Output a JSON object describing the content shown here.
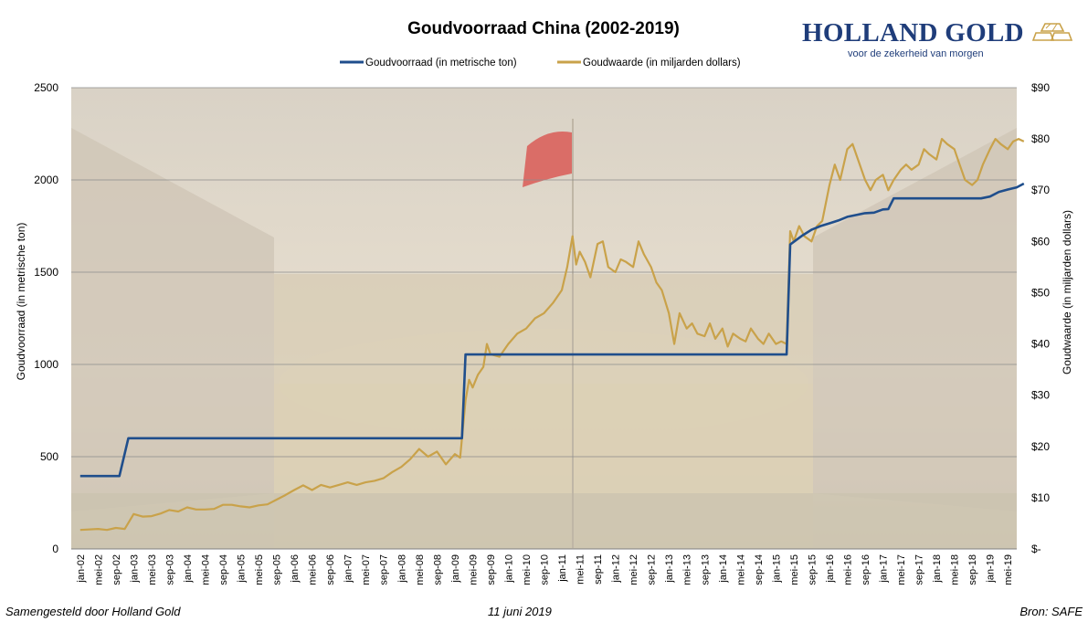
{
  "footer": {
    "left": "Samengesteld door Holland Gold",
    "center": "11 juni 2019",
    "right": "Bron: SAFE"
  },
  "logo": {
    "name": "HOLLAND GOLD",
    "tagline": "voor de zekerheid van morgen",
    "accent": "#c9a24a",
    "brand_color": "#1f3d7a"
  },
  "chart_data": {
    "type": "line",
    "title": "Goudvoorraad China (2002-2019)",
    "xlabel": "",
    "ylabel": "Goudvoorraad (in metrische ton)",
    "ylabel_right": "Goudwaarde (in miljarden dollars)",
    "ylim": [
      0,
      2500
    ],
    "ylim_right": [
      0,
      90
    ],
    "yticks": [
      "0",
      "500",
      "1000",
      "1500",
      "2000",
      "2500"
    ],
    "yticks_right": [
      "$-",
      "$10",
      "$20",
      "$30",
      "$40",
      "$50",
      "$60",
      "$70",
      "$80",
      "$90"
    ],
    "grid": "horizontal",
    "legend": "top-center",
    "categories": [
      "jan-02",
      "mei-02",
      "sep-02",
      "jan-03",
      "mei-03",
      "sep-03",
      "jan-04",
      "mei-04",
      "sep-04",
      "jan-05",
      "mei-05",
      "sep-05",
      "jan-06",
      "mei-06",
      "sep-06",
      "jan-07",
      "mei-07",
      "sep-07",
      "jan-08",
      "mei-08",
      "sep-08",
      "jan-09",
      "mei-09",
      "sep-09",
      "jan-10",
      "mei-10",
      "sep-10",
      "jan-11",
      "mei-11",
      "sep-11",
      "jan-12",
      "mei-12",
      "sep-12",
      "jan-13",
      "mei-13",
      "sep-13",
      "jan-14",
      "mei-14",
      "sep-14",
      "jan-15",
      "mei-15",
      "sep-15",
      "jan-16",
      "mei-16",
      "sep-16",
      "jan-17",
      "mei-17",
      "sep-17",
      "jan-18",
      "mei-18",
      "sep-18",
      "jan-19",
      "mei-19"
    ],
    "series": [
      {
        "name": "Goudvoorraad (in metrische ton)",
        "axis": "left",
        "color": "#1f4e8c",
        "points": [
          [
            0,
            395
          ],
          [
            2.2,
            395
          ],
          [
            2.7,
            600
          ],
          [
            21.4,
            600
          ],
          [
            21.6,
            1054
          ],
          [
            39.6,
            1054
          ],
          [
            39.8,
            1650
          ],
          [
            40.5,
            1700
          ],
          [
            41,
            1730
          ],
          [
            41.5,
            1750
          ],
          [
            42,
            1765
          ],
          [
            42.5,
            1780
          ],
          [
            43,
            1800
          ],
          [
            43.5,
            1810
          ],
          [
            44,
            1820
          ],
          [
            44.5,
            1823
          ],
          [
            45,
            1840
          ],
          [
            45.3,
            1842
          ],
          [
            45.6,
            1900
          ],
          [
            47,
            1900
          ],
          [
            48,
            1900
          ],
          [
            49,
            1900
          ],
          [
            50,
            1900
          ],
          [
            50.5,
            1900
          ],
          [
            51,
            1910
          ],
          [
            51.5,
            1935
          ],
          [
            52,
            1948
          ],
          [
            52.5,
            1960
          ],
          [
            52.9,
            1980
          ]
        ]
      },
      {
        "name": "Goudwaarde (in miljarden dollars)",
        "axis": "right",
        "color": "#c9a24a",
        "points": [
          [
            0,
            3.7
          ],
          [
            1,
            3.9
          ],
          [
            1.5,
            3.7
          ],
          [
            2,
            4.1
          ],
          [
            2.5,
            3.9
          ],
          [
            3,
            6.8
          ],
          [
            3.5,
            6.3
          ],
          [
            4,
            6.4
          ],
          [
            4.5,
            6.9
          ],
          [
            5,
            7.6
          ],
          [
            5.5,
            7.3
          ],
          [
            6,
            8.1
          ],
          [
            6.5,
            7.7
          ],
          [
            7,
            7.7
          ],
          [
            7.5,
            7.8
          ],
          [
            8,
            8.6
          ],
          [
            8.5,
            8.6
          ],
          [
            9,
            8.3
          ],
          [
            9.5,
            8.1
          ],
          [
            10,
            8.5
          ],
          [
            10.5,
            8.7
          ],
          [
            11,
            9.6
          ],
          [
            11.5,
            10.5
          ],
          [
            12,
            11.5
          ],
          [
            12.5,
            12.4
          ],
          [
            13,
            11.5
          ],
          [
            13.5,
            12.5
          ],
          [
            14,
            12.0
          ],
          [
            14.5,
            12.5
          ],
          [
            15,
            13.0
          ],
          [
            15.5,
            12.5
          ],
          [
            16,
            13.0
          ],
          [
            16.5,
            13.3
          ],
          [
            17,
            13.8
          ],
          [
            17.5,
            15.0
          ],
          [
            18,
            16.0
          ],
          [
            18.5,
            17.5
          ],
          [
            19,
            19.5
          ],
          [
            19.5,
            18.0
          ],
          [
            20,
            19.0
          ],
          [
            20.5,
            16.5
          ],
          [
            21,
            18.5
          ],
          [
            21.3,
            17.8
          ],
          [
            21.6,
            29.0
          ],
          [
            21.8,
            33.0
          ],
          [
            22,
            31.5
          ],
          [
            22.3,
            34.0
          ],
          [
            22.6,
            35.5
          ],
          [
            22.8,
            40.0
          ],
          [
            23,
            38.0
          ],
          [
            23.5,
            37.5
          ],
          [
            24,
            40.0
          ],
          [
            24.5,
            42.0
          ],
          [
            25,
            43.0
          ],
          [
            25.5,
            45.0
          ],
          [
            26,
            46.0
          ],
          [
            26.5,
            48.0
          ],
          [
            27,
            50.5
          ],
          [
            27.3,
            55.0
          ],
          [
            27.6,
            61.0
          ],
          [
            27.8,
            55.5
          ],
          [
            28,
            58.0
          ],
          [
            28.3,
            56.0
          ],
          [
            28.6,
            53.0
          ],
          [
            29,
            59.5
          ],
          [
            29.3,
            60.0
          ],
          [
            29.6,
            55.0
          ],
          [
            30,
            54.0
          ],
          [
            30.3,
            56.5
          ],
          [
            30.6,
            56.0
          ],
          [
            31,
            55.0
          ],
          [
            31.3,
            60.0
          ],
          [
            31.6,
            57.5
          ],
          [
            32,
            55.0
          ],
          [
            32.3,
            52.0
          ],
          [
            32.6,
            50.5
          ],
          [
            33,
            46.0
          ],
          [
            33.3,
            40.0
          ],
          [
            33.6,
            46.0
          ],
          [
            34,
            43.0
          ],
          [
            34.3,
            44.0
          ],
          [
            34.6,
            42.0
          ],
          [
            35,
            41.5
          ],
          [
            35.3,
            44.0
          ],
          [
            35.6,
            41.0
          ],
          [
            36,
            43.0
          ],
          [
            36.3,
            39.5
          ],
          [
            36.6,
            42.0
          ],
          [
            37,
            41.0
          ],
          [
            37.3,
            40.5
          ],
          [
            37.6,
            43.0
          ],
          [
            38,
            41.0
          ],
          [
            38.3,
            40.0
          ],
          [
            38.6,
            42.0
          ],
          [
            39,
            40.0
          ],
          [
            39.3,
            40.5
          ],
          [
            39.6,
            40.0
          ],
          [
            39.8,
            62.0
          ],
          [
            40,
            60.0
          ],
          [
            40.3,
            63.0
          ],
          [
            40.6,
            61.0
          ],
          [
            41,
            60.0
          ],
          [
            41.3,
            63.0
          ],
          [
            41.6,
            64.0
          ],
          [
            42,
            71.0
          ],
          [
            42.3,
            75.0
          ],
          [
            42.6,
            72.0
          ],
          [
            43,
            78.0
          ],
          [
            43.3,
            79.0
          ],
          [
            43.6,
            76.0
          ],
          [
            44,
            72.0
          ],
          [
            44.3,
            70.0
          ],
          [
            44.6,
            72.0
          ],
          [
            45,
            73.0
          ],
          [
            45.3,
            70.0
          ],
          [
            45.6,
            72.0
          ],
          [
            46,
            74.0
          ],
          [
            46.3,
            75.0
          ],
          [
            46.6,
            74.0
          ],
          [
            47,
            75.0
          ],
          [
            47.3,
            78.0
          ],
          [
            47.6,
            77.0
          ],
          [
            48,
            76.0
          ],
          [
            48.3,
            80.0
          ],
          [
            48.6,
            79.0
          ],
          [
            49,
            78.0
          ],
          [
            49.3,
            75.0
          ],
          [
            49.6,
            72.0
          ],
          [
            50,
            71.0
          ],
          [
            50.3,
            72.0
          ],
          [
            50.6,
            75.0
          ],
          [
            51,
            78.0
          ],
          [
            51.3,
            80.0
          ],
          [
            51.6,
            79.0
          ],
          [
            52,
            78.0
          ],
          [
            52.3,
            79.5
          ],
          [
            52.6,
            80.0
          ],
          [
            52.9,
            79.5
          ]
        ]
      }
    ]
  }
}
